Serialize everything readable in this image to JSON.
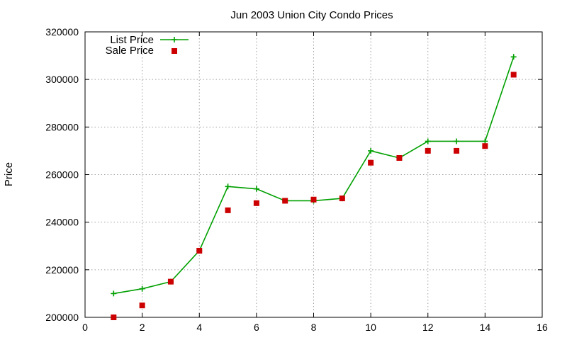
{
  "chart_data": {
    "type": "line",
    "title": "Jun 2003 Union City Condo Prices",
    "xlabel": "",
    "ylabel": "Price",
    "xlim": [
      0,
      16
    ],
    "ylim": [
      200000,
      320000
    ],
    "xticks": [
      0,
      2,
      4,
      6,
      8,
      10,
      12,
      14,
      16
    ],
    "yticks": [
      200000,
      220000,
      240000,
      260000,
      280000,
      300000,
      320000
    ],
    "grid": true,
    "legend_position": "top-left",
    "series": [
      {
        "name": "List Price",
        "style": "line-with-plus-markers",
        "color": "#00a000",
        "x": [
          1,
          2,
          3,
          4,
          5,
          6,
          7,
          8,
          9,
          10,
          11,
          12,
          13,
          14,
          15
        ],
        "y": [
          210000,
          212000,
          215000,
          228000,
          255000,
          254000,
          249000,
          249000,
          250000,
          270000,
          267000,
          274000,
          274000,
          274000,
          309500
        ]
      },
      {
        "name": "Sale Price",
        "style": "square-markers",
        "color": "#cc0000",
        "x": [
          1,
          2,
          3,
          4,
          5,
          6,
          7,
          8,
          9,
          10,
          11,
          12,
          13,
          14,
          15
        ],
        "y": [
          200000,
          205000,
          215000,
          228000,
          245000,
          248000,
          249000,
          249500,
          250000,
          265000,
          267000,
          270000,
          270000,
          272000,
          302000
        ]
      }
    ]
  }
}
